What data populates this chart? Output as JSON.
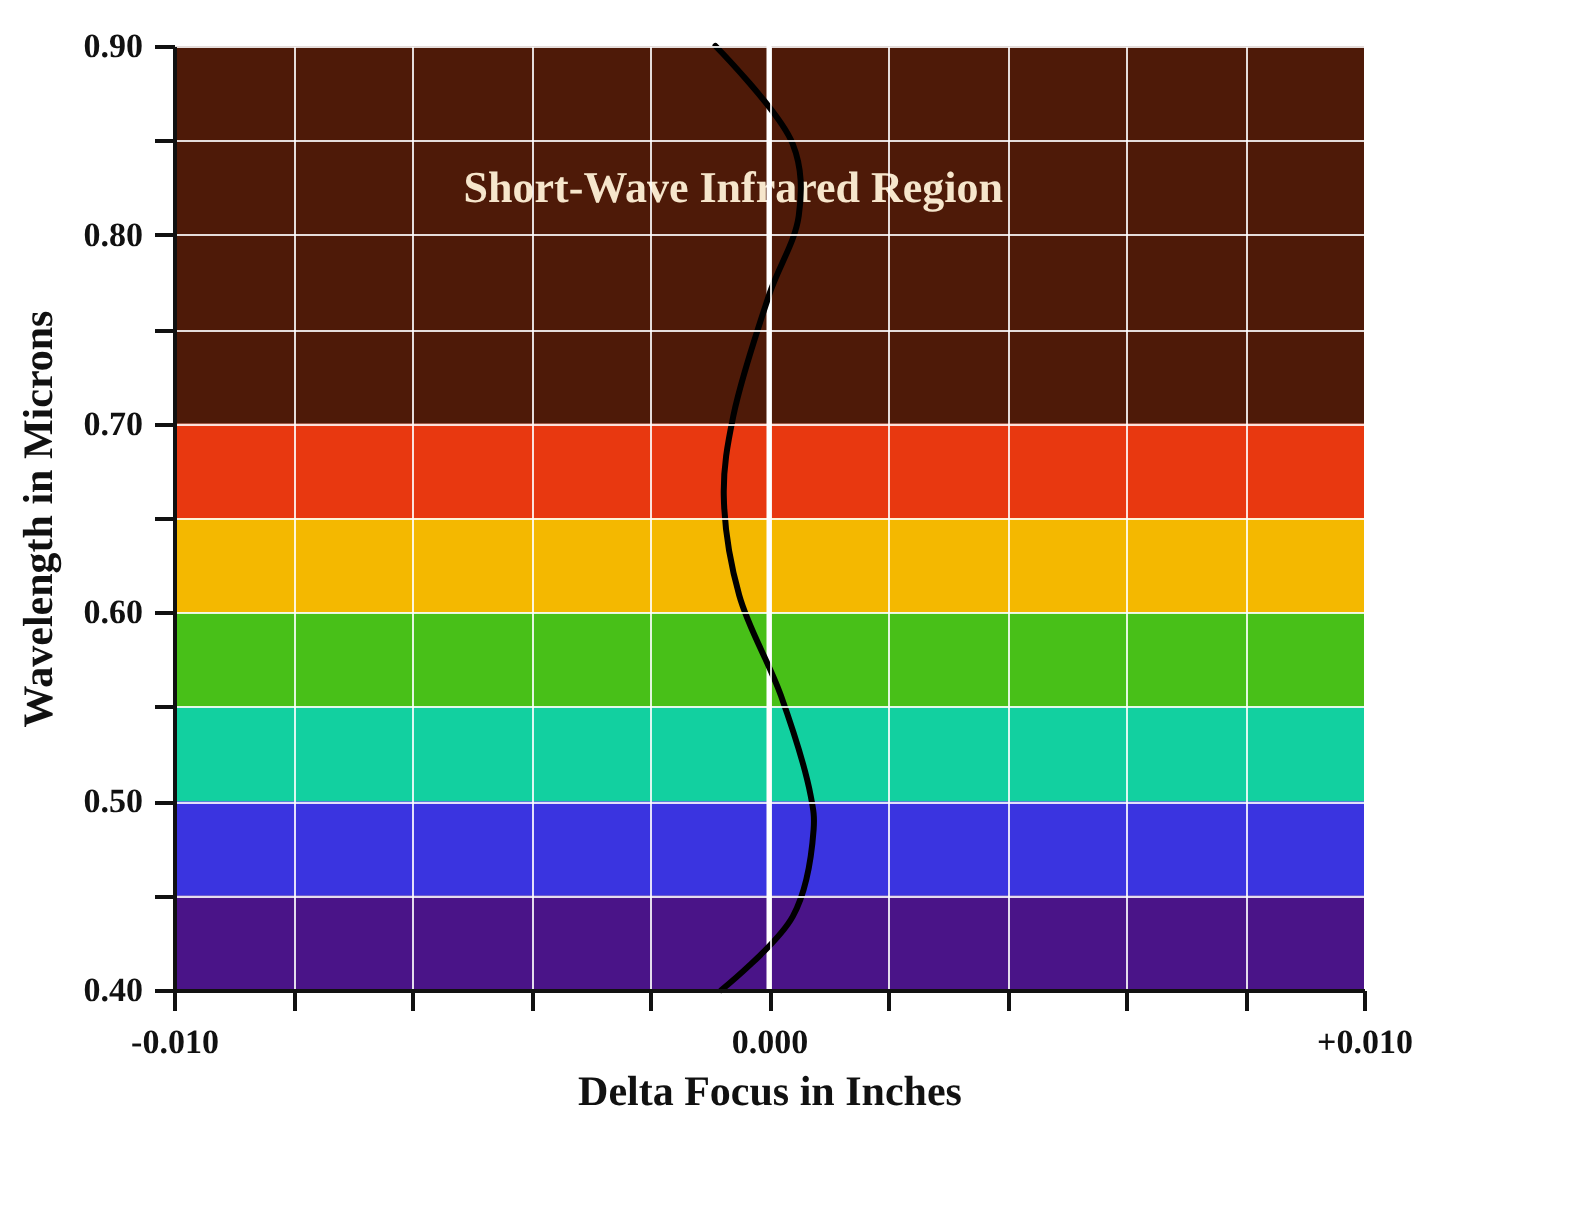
{
  "chart_data": {
    "type": "line",
    "xlabel": "Delta Focus in Inches",
    "ylabel": "Wavelength in Microns",
    "x": [
      -0.0009,
      0.0004,
      0.0005,
      0.0,
      -0.0006,
      -0.00076,
      -0.0005,
      0.0002,
      0.0007,
      0.00075,
      0.0004,
      -0.0008
    ],
    "series": [
      {
        "color": "#000000",
        "values": [
          0.9,
          0.848,
          0.81,
          0.768,
          0.704,
          0.662,
          0.609,
          0.556,
          0.503,
          0.485,
          0.439,
          0.4
        ]
      }
    ],
    "xlim": [
      -0.01,
      0.01
    ],
    "xticks": [
      {
        "value": -0.01,
        "label": "-0.010"
      },
      {
        "value": -0.008,
        "label": null
      },
      {
        "value": -0.006,
        "label": null
      },
      {
        "value": -0.004,
        "label": null
      },
      {
        "value": -0.002,
        "label": null
      },
      {
        "value": 0.0,
        "label": "0.000"
      },
      {
        "value": 0.002,
        "label": null
      },
      {
        "value": 0.004,
        "label": null
      },
      {
        "value": 0.006,
        "label": null
      },
      {
        "value": 0.008,
        "label": null
      },
      {
        "value": 0.01,
        "label": "+0.010"
      }
    ],
    "ylim": [
      0.4,
      0.9
    ],
    "yticks": [
      {
        "value": 0.4,
        "label": "0.40"
      },
      {
        "value": 0.45,
        "label": null
      },
      {
        "value": 0.5,
        "label": "0.50"
      },
      {
        "value": 0.55,
        "label": null
      },
      {
        "value": 0.6,
        "label": "0.60"
      },
      {
        "value": 0.65,
        "label": null
      },
      {
        "value": 0.7,
        "label": "0.70"
      },
      {
        "value": 0.75,
        "label": null
      },
      {
        "value": 0.8,
        "label": "0.80"
      },
      {
        "value": 0.85,
        "label": null
      },
      {
        "value": 0.9,
        "label": "0.90"
      }
    ],
    "grid": true,
    "line_style": "solid",
    "bands": [
      {
        "axis": "y",
        "from": 0.4,
        "to": 0.45,
        "color": "#4a1488"
      },
      {
        "axis": "y",
        "from": 0.45,
        "to": 0.5,
        "color": "#3a34e0"
      },
      {
        "axis": "y",
        "from": 0.5,
        "to": 0.55,
        "color": "#12d0a0"
      },
      {
        "axis": "y",
        "from": 0.55,
        "to": 0.6,
        "color": "#48c018"
      },
      {
        "axis": "y",
        "from": 0.6,
        "to": 0.65,
        "color": "#f4b800"
      },
      {
        "axis": "y",
        "from": 0.65,
        "to": 0.7,
        "color": "#e83810"
      },
      {
        "axis": "y",
        "from": 0.7,
        "to": 0.9,
        "color": "#4e1a08",
        "label": "Short-Wave Infrared Region"
      }
    ],
    "ref_lines": [
      {
        "axis": "x",
        "value": 0.0,
        "color": "#ffffff"
      }
    ]
  }
}
